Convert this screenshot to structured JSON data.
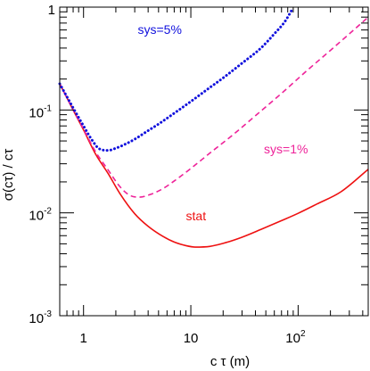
{
  "chart_data": {
    "type": "line",
    "title": "",
    "xlabel": "c τ (m)",
    "ylabel": "σ(cτ) / cτ",
    "xscale": "log",
    "yscale": "log",
    "xlim": [
      0.6,
      450
    ],
    "ylim": [
      0.001,
      1
    ],
    "x_ticks": [
      {
        "value": 1,
        "label": "1"
      },
      {
        "value": 10,
        "label": "10"
      },
      {
        "value": 100,
        "label": "10",
        "sup": "2"
      }
    ],
    "y_ticks": [
      {
        "value": 0.001,
        "label": "10",
        "sup": "-3"
      },
      {
        "value": 0.01,
        "label": "10",
        "sup": "-2"
      },
      {
        "value": 0.1,
        "label": "10",
        "sup": "-1"
      },
      {
        "value": 1,
        "label": "1"
      }
    ],
    "grid": false,
    "series": [
      {
        "name": "stat",
        "color": "#ee1111",
        "style": "solid",
        "x": [
          0.6,
          0.8,
          1,
          1.3,
          1.7,
          2.2,
          3,
          4,
          5.5,
          7,
          9,
          11,
          15,
          20,
          30,
          45,
          70,
          100,
          150,
          250,
          450
        ],
        "y": [
          0.18,
          0.1,
          0.064,
          0.037,
          0.024,
          0.0152,
          0.0098,
          0.0074,
          0.0059,
          0.0052,
          0.0048,
          0.00465,
          0.00472,
          0.00505,
          0.0058,
          0.0069,
          0.0084,
          0.0099,
          0.0122,
          0.016,
          0.0265
        ]
      },
      {
        "name": "sys=1%",
        "color": "#ee2299",
        "style": "dashed",
        "x": [
          0.6,
          0.8,
          1,
          1.3,
          1.7,
          2.2,
          2.7,
          3.3,
          4.2,
          5.5,
          7,
          10,
          15,
          25,
          40,
          70,
          120,
          200,
          300,
          450
        ],
        "y": [
          0.18,
          0.1,
          0.065,
          0.039,
          0.026,
          0.0178,
          0.0148,
          0.0142,
          0.0151,
          0.0172,
          0.0204,
          0.027,
          0.038,
          0.058,
          0.088,
          0.145,
          0.24,
          0.38,
          0.55,
          0.8
        ]
      },
      {
        "name": "sys=5%",
        "color": "#1111dd",
        "style": "dotted",
        "x": [
          0.6,
          0.8,
          1,
          1.2,
          1.4,
          1.7,
          2,
          2.5,
          3,
          4,
          5,
          7,
          10,
          15,
          20,
          30,
          45,
          60,
          75,
          88
        ],
        "y": [
          0.18,
          0.105,
          0.07,
          0.051,
          0.042,
          0.0405,
          0.0425,
          0.047,
          0.052,
          0.063,
          0.073,
          0.093,
          0.121,
          0.165,
          0.205,
          0.285,
          0.4,
          0.55,
          0.72,
          0.95
        ]
      }
    ],
    "annotations": [
      {
        "text": "sys=5%",
        "color": "#1111dd",
        "x": 3.2,
        "y": 0.55
      },
      {
        "text": "sys=1%",
        "color": "#ee2299",
        "x": 48,
        "y": 0.038
      },
      {
        "text": "stat",
        "color": "#ee1111",
        "x": 9,
        "y": 0.0085
      }
    ]
  }
}
